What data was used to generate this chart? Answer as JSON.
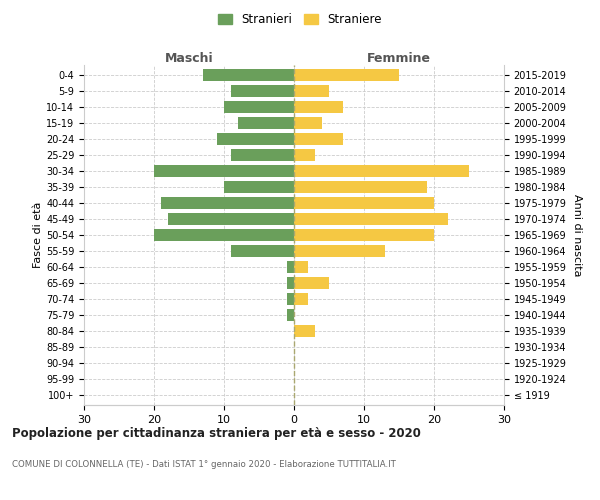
{
  "age_groups": [
    "100+",
    "95-99",
    "90-94",
    "85-89",
    "80-84",
    "75-79",
    "70-74",
    "65-69",
    "60-64",
    "55-59",
    "50-54",
    "45-49",
    "40-44",
    "35-39",
    "30-34",
    "25-29",
    "20-24",
    "15-19",
    "10-14",
    "5-9",
    "0-4"
  ],
  "birth_years": [
    "≤ 1919",
    "1920-1924",
    "1925-1929",
    "1930-1934",
    "1935-1939",
    "1940-1944",
    "1945-1949",
    "1950-1954",
    "1955-1959",
    "1960-1964",
    "1965-1969",
    "1970-1974",
    "1975-1979",
    "1980-1984",
    "1985-1989",
    "1990-1994",
    "1995-1999",
    "2000-2004",
    "2005-2009",
    "2010-2014",
    "2015-2019"
  ],
  "males": [
    0,
    0,
    0,
    0,
    0,
    1,
    1,
    1,
    1,
    9,
    20,
    18,
    19,
    10,
    20,
    9,
    11,
    8,
    10,
    9,
    13
  ],
  "females": [
    0,
    0,
    0,
    0,
    3,
    0,
    2,
    5,
    2,
    13,
    20,
    22,
    20,
    19,
    25,
    3,
    7,
    4,
    7,
    5,
    15
  ],
  "male_color": "#6a9f5b",
  "female_color": "#f5c843",
  "background_color": "#ffffff",
  "grid_color": "#cccccc",
  "title": "Popolazione per cittadinanza straniera per età e sesso - 2020",
  "subtitle": "COMUNE DI COLONNELLA (TE) - Dati ISTAT 1° gennaio 2020 - Elaborazione TUTTITALIA.IT",
  "xlabel_left": "Maschi",
  "xlabel_right": "Femmine",
  "ylabel_left": "Fasce di età",
  "ylabel_right": "Anni di nascita",
  "legend_males": "Stranieri",
  "legend_females": "Straniere",
  "xlim": 30,
  "bar_height": 0.75
}
